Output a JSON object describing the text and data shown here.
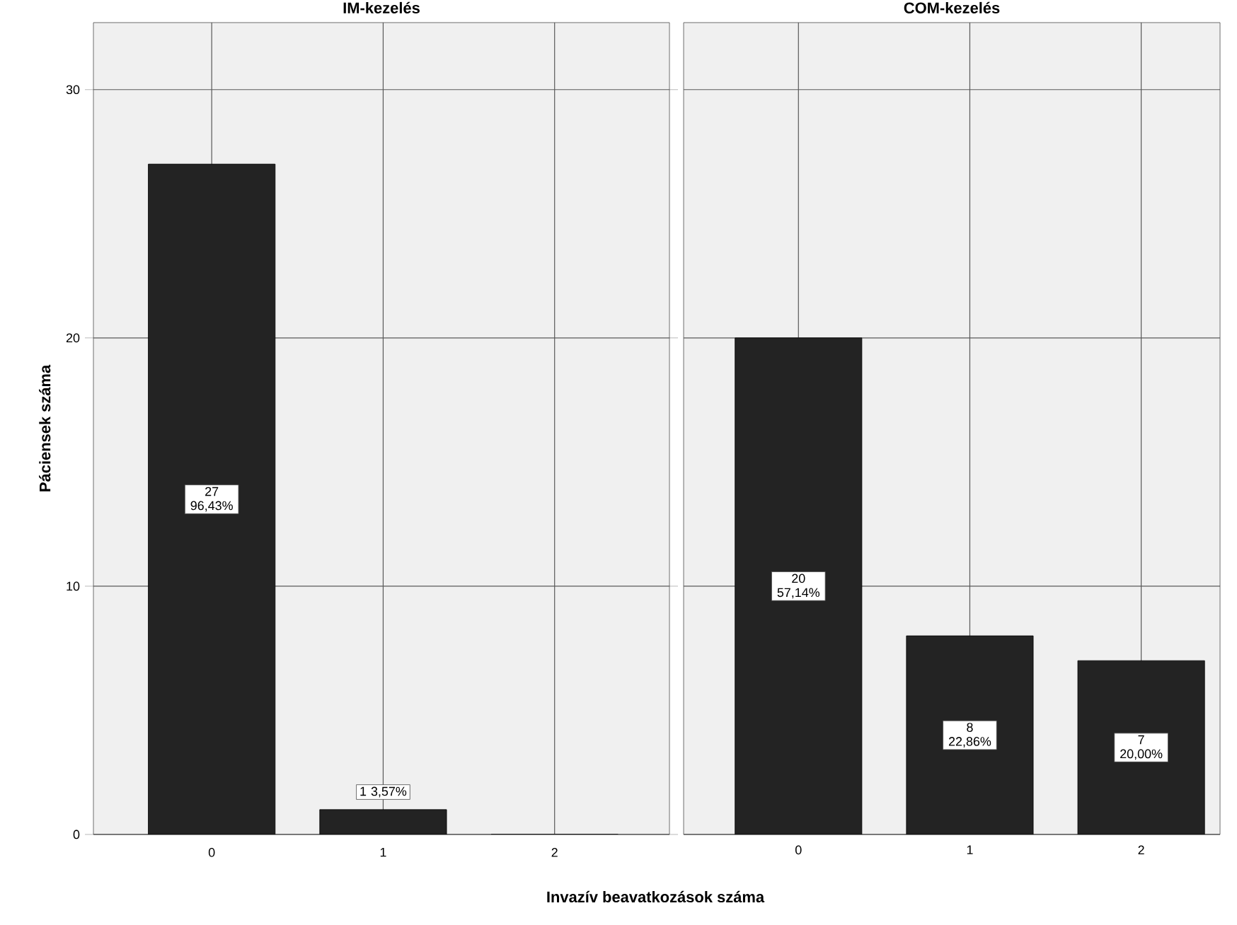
{
  "chart_data": [
    {
      "type": "bar",
      "title": "IM-kezelés",
      "ylabel": "Páciensek száma",
      "xlabel": "Invazív beavatkozások száma",
      "categories": [
        "0",
        "1",
        "2"
      ],
      "values": [
        27,
        1,
        0
      ],
      "color": "#232323",
      "ylim": [
        0,
        32.7
      ],
      "yticks": [
        0,
        10,
        20,
        30
      ],
      "grid": true,
      "value_labels": [
        "27 96,43%",
        "1 3,57%",
        null
      ]
    },
    {
      "type": "bar",
      "title": "COM-kezelés",
      "categories": [
        "0",
        "1",
        "2"
      ],
      "values": [
        20,
        8,
        7
      ],
      "color": "#232323",
      "ylim": [
        0,
        32.7
      ],
      "yticks": [
        0,
        10,
        20,
        30
      ],
      "grid": true,
      "tick_labels": "x",
      "value_labels": [
        "20 57,14%",
        "8 22,86%",
        "7 20,00%"
      ]
    }
  ]
}
